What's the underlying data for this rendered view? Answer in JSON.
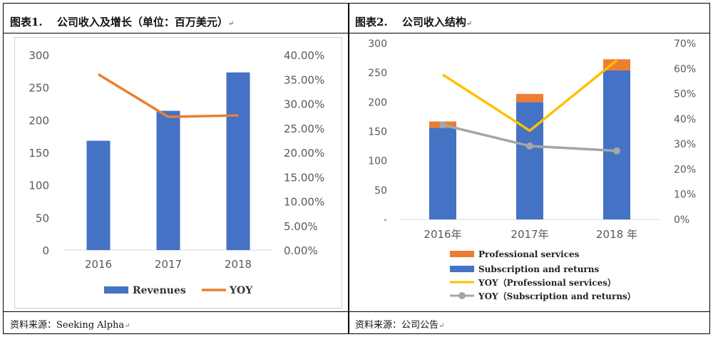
{
  "fig1": {
    "title": "图表1.　 公司收入及增长（单位：百万美元）",
    "source": "资料来源：Seeking Alpha"
  },
  "fig2": {
    "title": "图表2.　 公司收入结构",
    "source": "资料来源：公司公告"
  },
  "return_mark": "↵",
  "colors": {
    "blue": "#4472C4",
    "orange": "#ED7D31",
    "yellow": "#FFC000",
    "gray": "#A5A5A5",
    "axis_text": "#595959"
  },
  "chart_data": [
    {
      "type": "bar",
      "categories": [
        "2016",
        "2017",
        "2018"
      ],
      "series": [
        {
          "name": "Revenues",
          "kind": "bar",
          "axis": "left",
          "values": [
            168,
            214,
            273
          ]
        },
        {
          "name": "YOY",
          "kind": "line",
          "axis": "right",
          "values": [
            36.0,
            27.3,
            27.6
          ]
        }
      ],
      "left_axis": {
        "min": 0,
        "max": 300,
        "ticks": [
          0,
          50,
          100,
          150,
          200,
          250,
          300
        ],
        "tick_labels": [
          "0",
          "50",
          "100",
          "150",
          "200",
          "250",
          "300"
        ]
      },
      "right_axis": {
        "min": 0,
        "max": 40,
        "ticks": [
          0,
          5,
          10,
          15,
          20,
          25,
          30,
          35,
          40
        ],
        "tick_labels": [
          "0.00%",
          "5.00%",
          "10.00%",
          "15.00%",
          "20.00%",
          "25.00%",
          "30.00%",
          "35.00%",
          "40.00%"
        ]
      },
      "legend": [
        "Revenues",
        "YOY"
      ],
      "legend_position": "bottom",
      "grid": false
    },
    {
      "type": "bar",
      "stacked": true,
      "categories": [
        "2016年",
        "2017年",
        "2018 年"
      ],
      "series": [
        {
          "name": "Subscription and returns",
          "kind": "bar",
          "axis": "left",
          "values": [
            156,
            200,
            254
          ]
        },
        {
          "name": "Professional services",
          "kind": "bar",
          "axis": "left",
          "values": [
            11,
            14,
            19
          ]
        },
        {
          "name": "YOY（Professional services）",
          "kind": "line",
          "axis": "right",
          "values": [
            57.6,
            35.3,
            63.3
          ]
        },
        {
          "name": "YOY（Subscription and returns）",
          "kind": "line",
          "axis": "right",
          "marker": "circle",
          "values": [
            37.6,
            29.2,
            27.3
          ]
        }
      ],
      "left_axis": {
        "min": 0,
        "max": 300,
        "ticks": [
          0,
          50,
          100,
          150,
          200,
          250,
          300
        ],
        "tick_labels": [
          "-",
          "50",
          "100",
          "150",
          "200",
          "250",
          "300"
        ]
      },
      "right_axis": {
        "min": 0,
        "max": 70,
        "ticks": [
          0,
          10,
          20,
          30,
          40,
          50,
          60,
          70
        ],
        "tick_labels": [
          "0%",
          "10%",
          "20%",
          "30%",
          "40%",
          "50%",
          "60%",
          "70%"
        ]
      },
      "legend": [
        "Professional services",
        "Subscription and returns",
        "YOY（Professional services）",
        "YOY（Subscription and returns）"
      ],
      "legend_position": "bottom",
      "grid": false
    }
  ]
}
